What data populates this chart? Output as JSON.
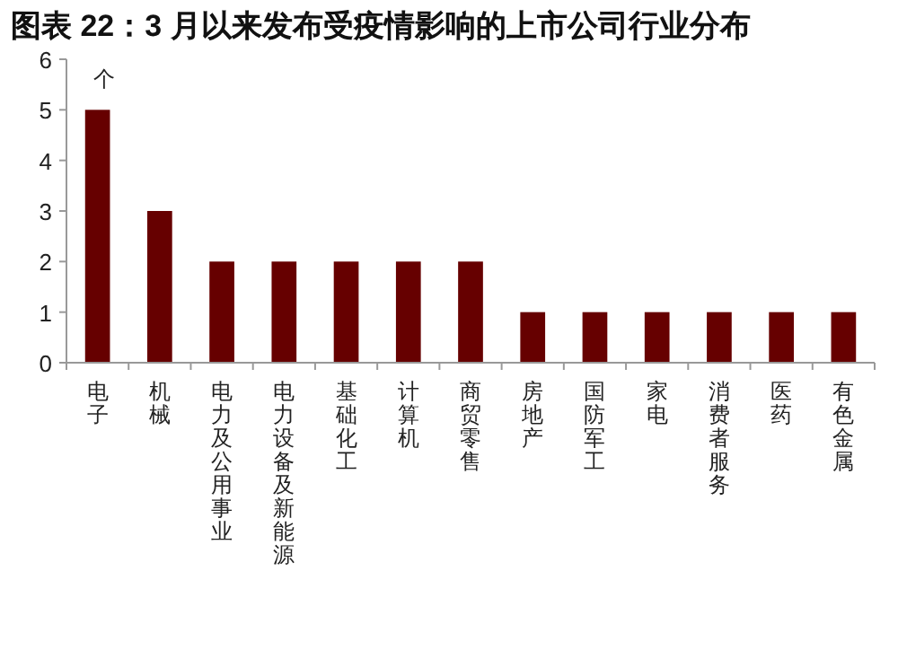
{
  "chart_data": {
    "type": "bar",
    "title": "图表 22：3 月以来发布受疫情影响的上市公司行业分布",
    "ylabel": "个",
    "categories": [
      "电子",
      "机械",
      "电力及公用事业",
      "电力设备及新能源",
      "基础化工",
      "计算机",
      "商贸零售",
      "房地产",
      "国防军工",
      "家电",
      "消费者服务",
      "医药",
      "有色金属"
    ],
    "values": [
      5,
      3,
      2,
      2,
      2,
      2,
      2,
      1,
      1,
      1,
      1,
      1,
      1
    ],
    "color": "#660000",
    "ylim": [
      0,
      6
    ],
    "yticks": [
      0,
      1,
      2,
      3,
      4,
      5,
      6
    ],
    "grid": false
  }
}
